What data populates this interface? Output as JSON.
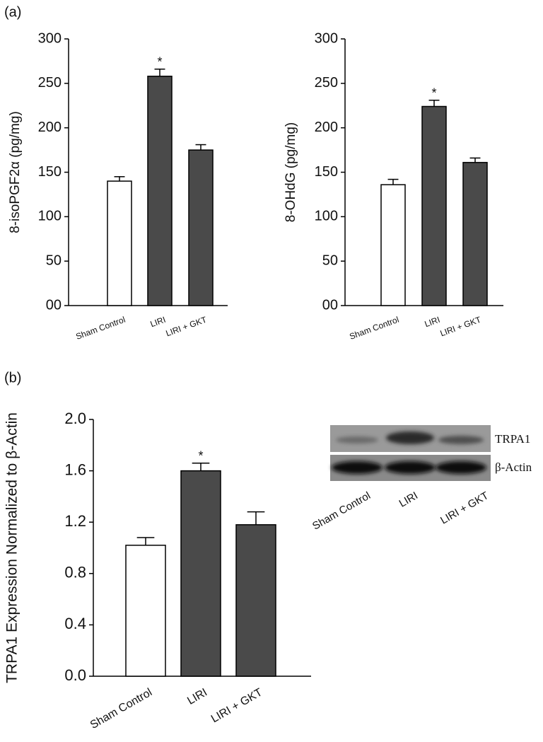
{
  "chart_data": [
    {
      "type": "bar",
      "panel_label": "(a)",
      "y_label": "8-isoPGF2α (pg/mg)",
      "categories": [
        "Sham Control",
        "LIRI",
        "LIRI + GKT"
      ],
      "values": [
        140,
        258,
        175
      ],
      "errors": [
        5,
        8,
        6
      ],
      "markers": [
        null,
        "*",
        null
      ],
      "colors": [
        "#ffffff",
        "#4a4a4a",
        "#4a4a4a"
      ],
      "ylim": [
        0,
        300
      ],
      "yticks": [
        {
          "value": 0,
          "label": "00"
        },
        50,
        100,
        150,
        200,
        250,
        300
      ]
    },
    {
      "type": "bar",
      "y_label": "8-OHdG (pg/mg)",
      "categories": [
        "Sham Control",
        "LIRI",
        "LIRI + GKT"
      ],
      "values": [
        136,
        224,
        161
      ],
      "errors": [
        6,
        7,
        5
      ],
      "markers": [
        null,
        "*",
        null
      ],
      "colors": [
        "#ffffff",
        "#4a4a4a",
        "#4a4a4a"
      ],
      "ylim": [
        0,
        300
      ],
      "yticks": [
        {
          "value": 0,
          "label": "00"
        },
        50,
        100,
        150,
        200,
        250,
        300
      ]
    },
    {
      "type": "bar",
      "panel_label": "(b)",
      "y_label": "TRPA1 Expression Normalized to β-Actin",
      "categories": [
        "Sham Control",
        "LIRI",
        "LIRI + GKT"
      ],
      "values": [
        1.02,
        1.6,
        1.18
      ],
      "errors": [
        0.06,
        0.06,
        0.1
      ],
      "markers": [
        null,
        "*",
        null
      ],
      "colors": [
        "#ffffff",
        "#4a4a4a",
        "#4a4a4a"
      ],
      "ylim": [
        0,
        2
      ],
      "yticks": [
        {
          "value": 0,
          "label": "0.0"
        },
        0.4,
        0.8,
        1.2,
        1.6,
        {
          "value": 2,
          "label": "2.0"
        }
      ]
    }
  ],
  "blot": {
    "bands": [
      "TRPA1",
      "β-Actin"
    ],
    "lanes": [
      "Sham Control",
      "LIRI",
      "LIRI + GKT"
    ]
  }
}
